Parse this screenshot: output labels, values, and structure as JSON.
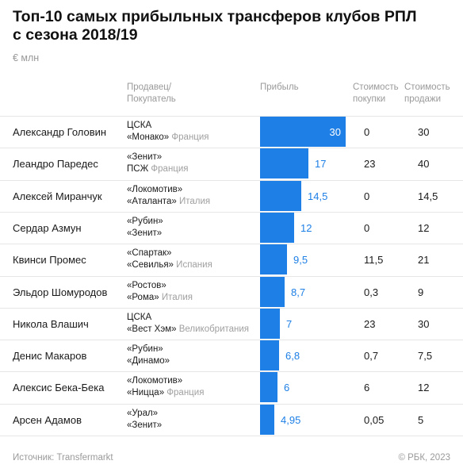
{
  "title_line1": "Топ-10 самых прибыльных трансферов клубов РПЛ",
  "title_line2": "с сезона 2018/19",
  "unit": "€ млн",
  "headers": {
    "seller_buyer_1": "Продавец/",
    "seller_buyer_2": "Покупатель",
    "profit": "Прибыль",
    "buy_1": "Стоимость",
    "buy_2": "покупки",
    "sell_1": "Стоимость",
    "sell_2": "продажи"
  },
  "chart_data": {
    "type": "bar",
    "orientation": "horizontal",
    "bar_color": "#1e7fe6",
    "xlim": [
      0,
      30
    ],
    "rows": [
      {
        "player": "Александр Головин",
        "seller": "ЦСКА",
        "buyer": "«Монако»",
        "buyer_country": "Франция",
        "profit": 30,
        "profit_label": "30",
        "buy": "0",
        "sell": "30"
      },
      {
        "player": "Леандро Паредес",
        "seller": "«Зенит»",
        "buyer": "ПСЖ",
        "buyer_country": "Франция",
        "profit": 17,
        "profit_label": "17",
        "buy": "23",
        "sell": "40"
      },
      {
        "player": "Алексей Миранчук",
        "seller": "«Локомотив»",
        "buyer": "«Аталанта»",
        "buyer_country": "Италия",
        "profit": 14.5,
        "profit_label": "14,5",
        "buy": "0",
        "sell": "14,5"
      },
      {
        "player": "Сердар Азмун",
        "seller": "«Рубин»",
        "buyer": "«Зенит»",
        "buyer_country": "",
        "profit": 12,
        "profit_label": "12",
        "buy": "0",
        "sell": "12"
      },
      {
        "player": "Квинси Промес",
        "seller": "«Спартак»",
        "buyer": "«Севилья»",
        "buyer_country": "Испания",
        "profit": 9.5,
        "profit_label": "9,5",
        "buy": "11,5",
        "sell": "21"
      },
      {
        "player": "Эльдор Шомуродов",
        "seller": "«Ростов»",
        "buyer": "«Рома»",
        "buyer_country": "Италия",
        "profit": 8.7,
        "profit_label": "8,7",
        "buy": "0,3",
        "sell": "9"
      },
      {
        "player": "Никола Влашич",
        "seller": "ЦСКА",
        "buyer": "«Вест Хэм»",
        "buyer_country": "Великобритания",
        "profit": 7,
        "profit_label": "7",
        "buy": "23",
        "sell": "30"
      },
      {
        "player": "Денис Макаров",
        "seller": "«Рубин»",
        "buyer": "«Динамо»",
        "buyer_country": "",
        "profit": 6.8,
        "profit_label": "6,8",
        "buy": "0,7",
        "sell": "7,5"
      },
      {
        "player": "Алексис Бека-Бека",
        "seller": "«Локомотив»",
        "buyer": "«Ницца»",
        "buyer_country": "Франция",
        "profit": 6,
        "profit_label": "6",
        "buy": "6",
        "sell": "12"
      },
      {
        "player": "Арсен Адамов",
        "seller": "«Урал»",
        "buyer": "«Зенит»",
        "buyer_country": "",
        "profit": 4.95,
        "profit_label": "4,95",
        "buy": "0,05",
        "sell": "5"
      }
    ]
  },
  "footer": {
    "source": "Источник: Transfermarkt",
    "copyright": "© РБК, 2023"
  }
}
